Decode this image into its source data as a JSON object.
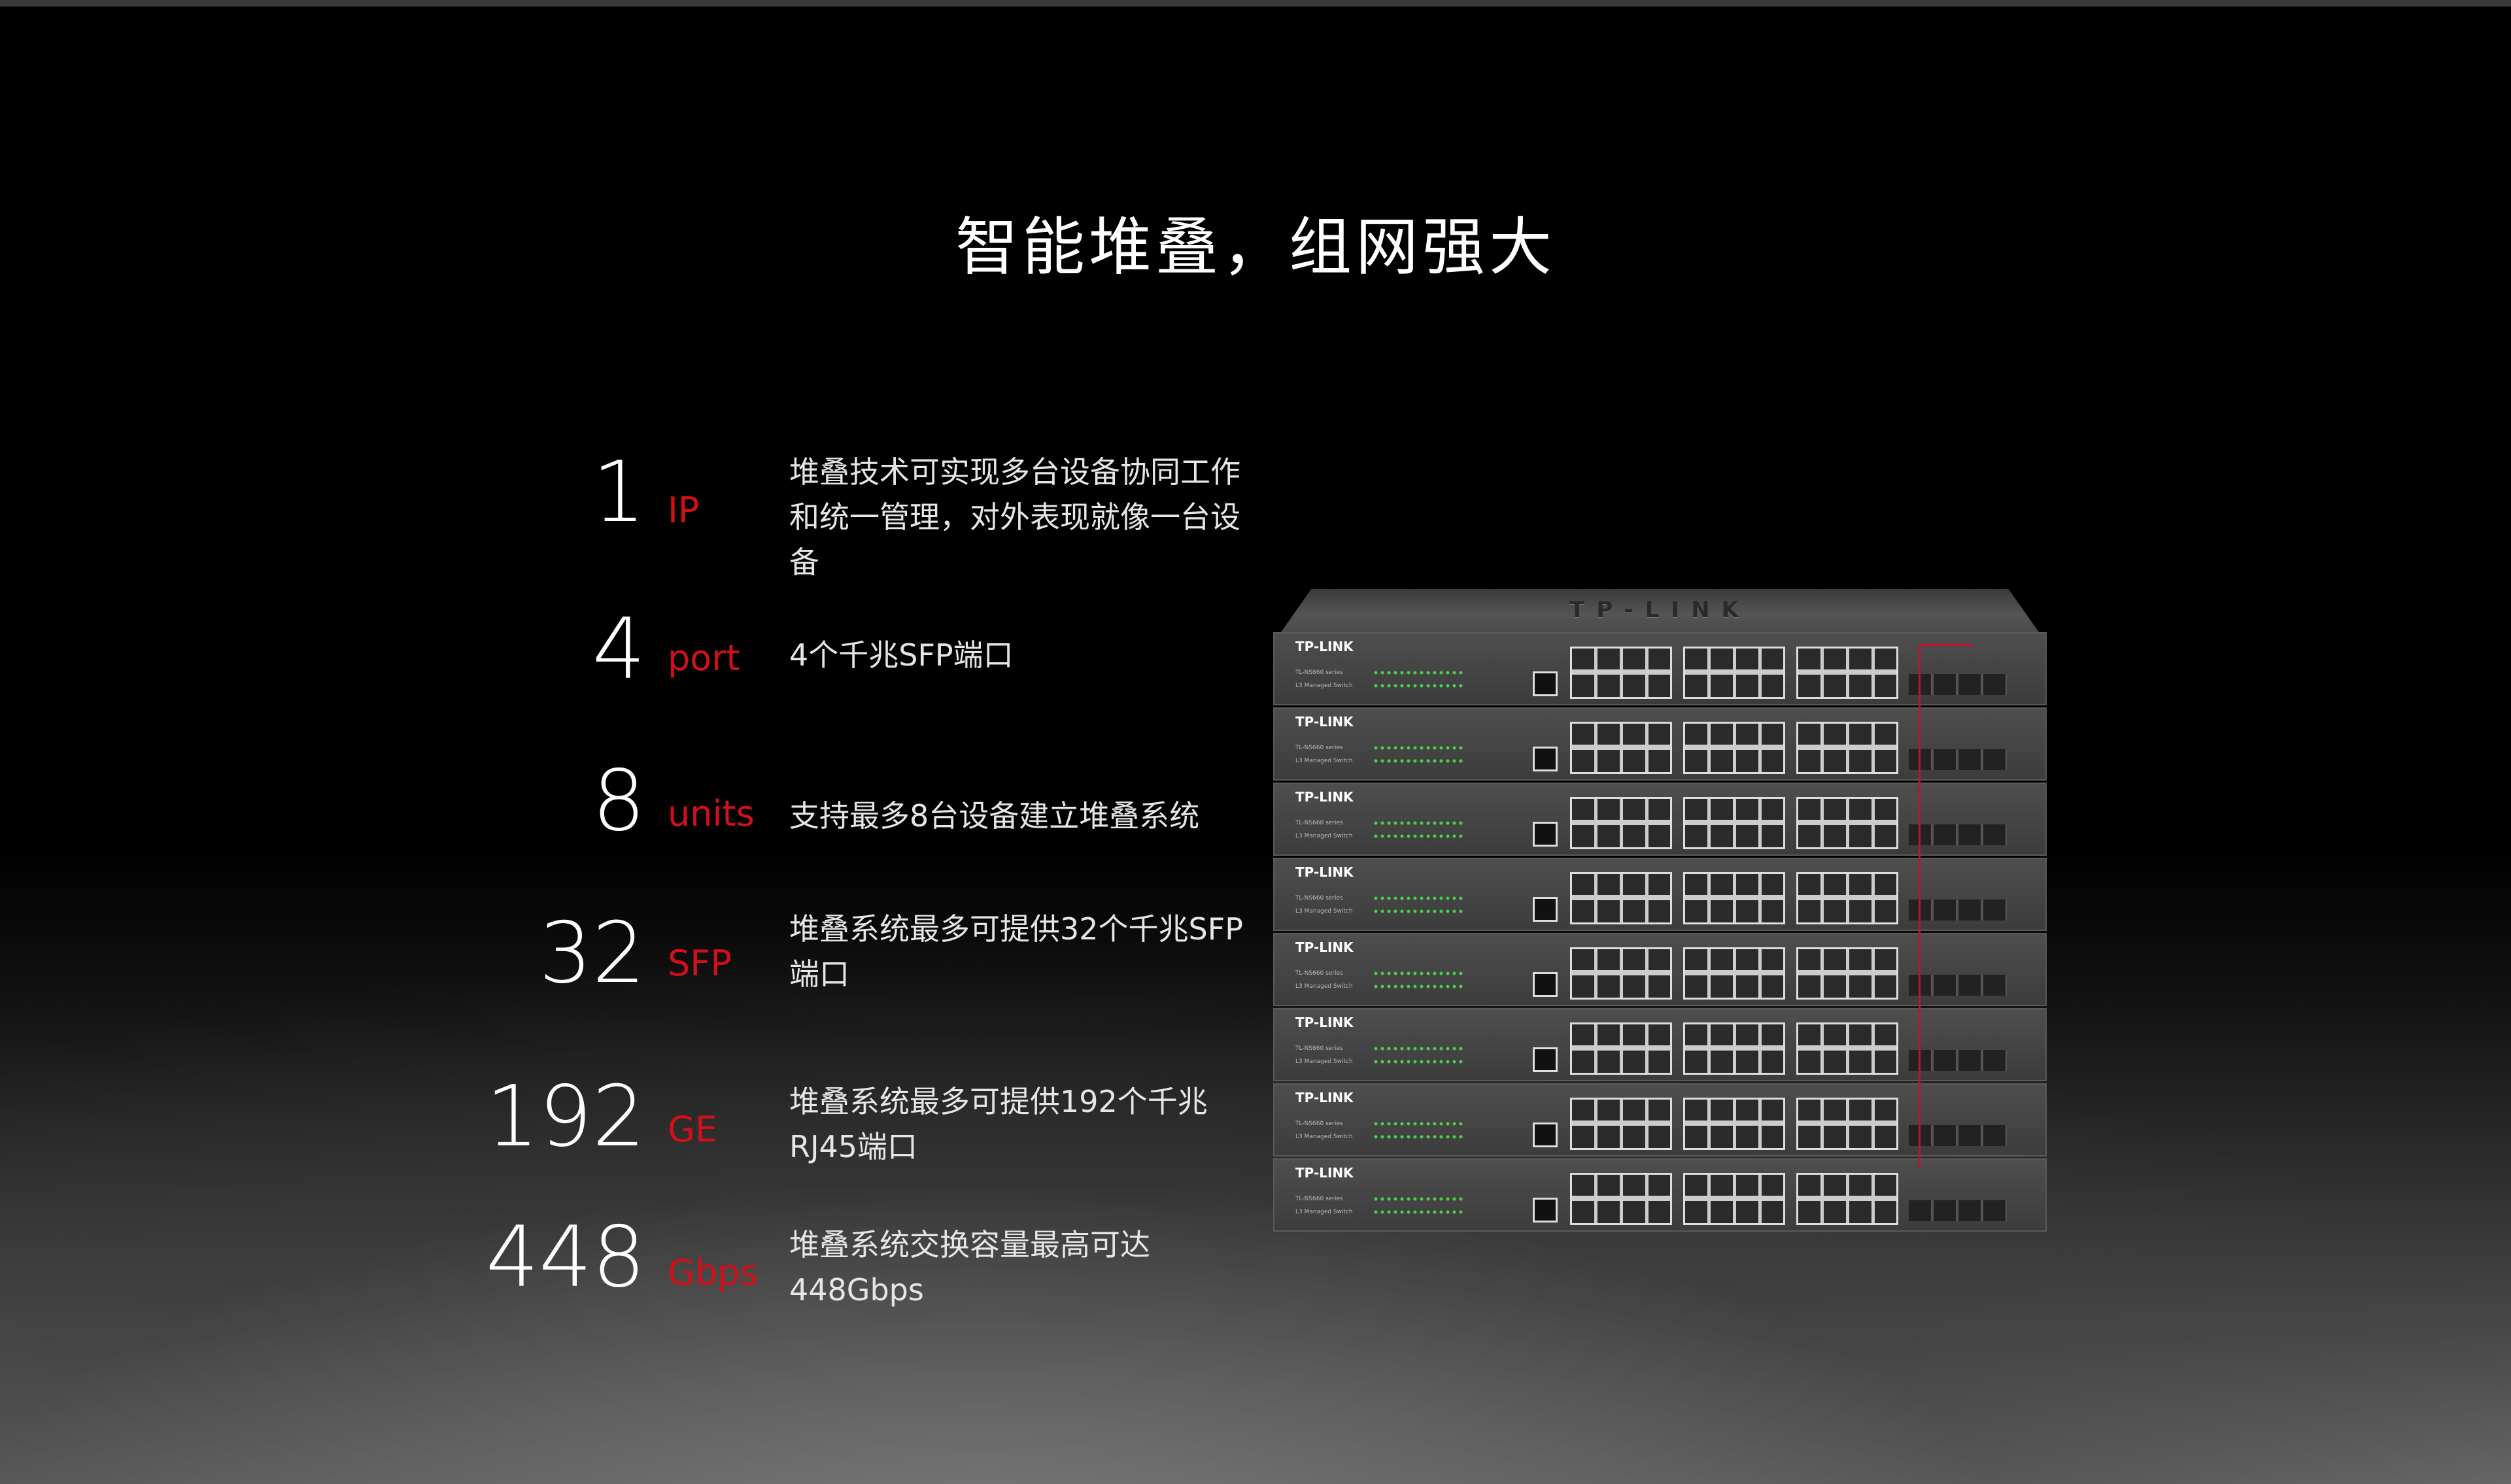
{
  "title": "智能堆叠，组网强大",
  "features": [
    {
      "number": "1",
      "unit": "IP",
      "description": "堆叠技术可实现多台设备协同工作和统一管理，对外表现就像一台设备"
    },
    {
      "number": "4",
      "unit": "port",
      "description": "4个千兆SFP端口"
    },
    {
      "number": "8",
      "unit": "units",
      "description": "支持最多8台设备建立堆叠系统"
    },
    {
      "number": "32",
      "unit": "SFP",
      "description": "堆叠系统最多可提供32个千兆SFP端口"
    },
    {
      "number": "192",
      "unit": "GE",
      "description": "堆叠系统最多可提供192个千兆RJ45端口"
    },
    {
      "number": "448",
      "unit": "Gbps",
      "description": "堆叠系统交换容量最高可达448Gbps"
    }
  ],
  "product_image": {
    "lid_logo": "TP-LINK",
    "brand": "TP-LINK",
    "model": "TL-NS660 series",
    "type": "L3 Managed Switch",
    "unit_count": 8
  },
  "colors": {
    "accent": "#d0101a",
    "background": "#000000",
    "text": "#ffffff"
  }
}
